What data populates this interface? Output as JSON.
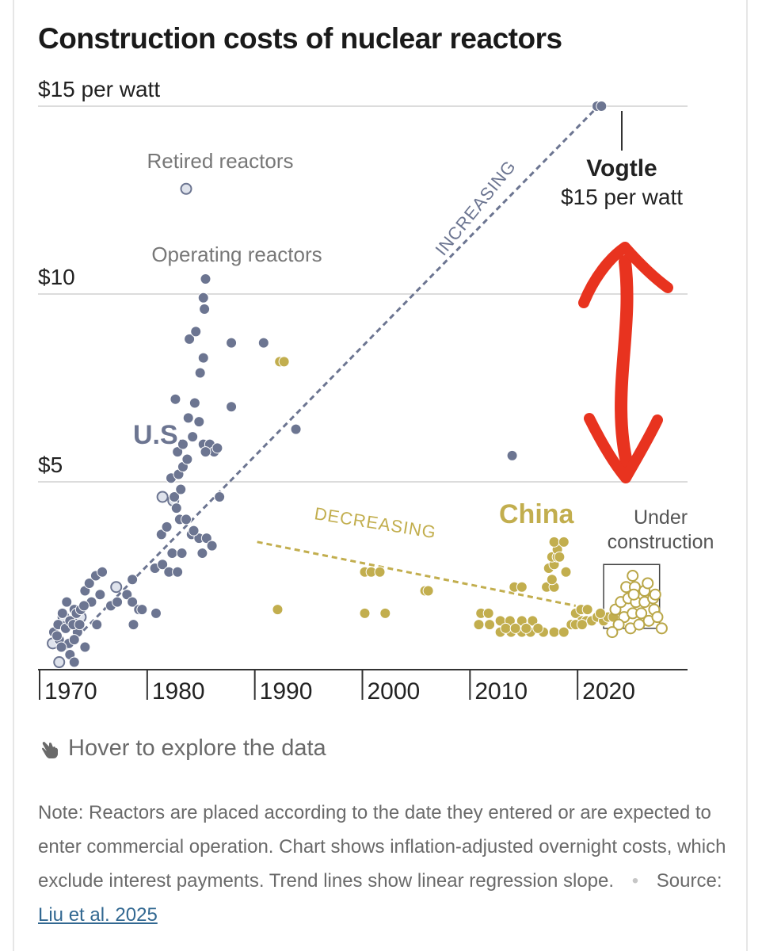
{
  "title": "Construction costs of nuclear reactors",
  "hover_text": "Hover to explore the data",
  "note": {
    "text": "Note: Reactors are placed according to the date they entered or are expected to enter commercial operation. Chart shows inflation-adjusted overnight costs, which exclude interest payments. Trend lines show linear regression slope.",
    "source_label": "Source:",
    "source_link": "Liu et al. 2025"
  },
  "colors": {
    "us": "#6c7591",
    "china": "#c2ae4e",
    "china_outline": "#b9a647",
    "arrow": "#e8331f",
    "grid": "#dcdcdc"
  },
  "chart_data": {
    "type": "scatter",
    "title": "Construction costs of nuclear reactors",
    "ylim": [
      0,
      15
    ],
    "xlim": [
      1970,
      2030
    ],
    "ytick_labels": [
      "$15 per watt",
      "$10",
      "$5"
    ],
    "yticks": [
      15,
      10,
      5
    ],
    "xticks": [
      1970,
      1980,
      1990,
      2000,
      2010,
      2020
    ],
    "xtick_labels": [
      "1970",
      "1980",
      "1990",
      "2000",
      "2010",
      "2020"
    ],
    "annotations": {
      "us_label": "U.S.",
      "china_label": "China",
      "retired": "Retired reactors",
      "operating": "Operating reactors",
      "vogtle_name": "Vogtle",
      "vogtle_value": "$15 per watt",
      "increasing": "INCREASING",
      "decreasing": "DECREASING",
      "under_construction_1": "Under",
      "under_construction_2": "construction"
    },
    "us_operating": [
      [
        1971.1,
        1.0
      ],
      [
        1971.5,
        1.2
      ],
      [
        1971.9,
        1.5
      ],
      [
        1972.2,
        1.1
      ],
      [
        1972.6,
        1.3
      ],
      [
        1973.0,
        1.6
      ],
      [
        1973.3,
        1.0
      ],
      [
        1971.6,
        0.8
      ],
      [
        1972.5,
        0.7
      ],
      [
        1973.0,
        0.8
      ],
      [
        1971.8,
        0.6
      ],
      [
        1972.6,
        0.4
      ],
      [
        1973.0,
        0.2
      ],
      [
        1971.4,
        0.9
      ],
      [
        1972.9,
        1.2
      ],
      [
        1973.2,
        1.5
      ],
      [
        1972.3,
        1.8
      ],
      [
        1973.6,
        1.6
      ],
      [
        1974.0,
        2.1
      ],
      [
        1974.4,
        2.3
      ],
      [
        1975.0,
        2.5
      ],
      [
        1975.6,
        2.6
      ],
      [
        1973.5,
        1.2
      ],
      [
        1974.0,
        0.6
      ],
      [
        1974.6,
        1.8
      ],
      [
        1975.4,
        2.0
      ],
      [
        1975.1,
        1.2
      ],
      [
        1973.9,
        1.7
      ],
      [
        1976.4,
        1.7
      ],
      [
        1977.0,
        1.8
      ],
      [
        1977.9,
        2.0
      ],
      [
        1978.4,
        2.4
      ],
      [
        1978.4,
        1.8
      ],
      [
        1979.0,
        1.6
      ],
      [
        1978.5,
        1.2
      ],
      [
        1979.3,
        1.6
      ],
      [
        1980.6,
        1.5
      ],
      [
        1980.5,
        2.7
      ],
      [
        1981.2,
        2.8
      ],
      [
        1981.8,
        2.6
      ],
      [
        1982.6,
        2.6
      ],
      [
        1981.1,
        3.6
      ],
      [
        1981.6,
        3.8
      ],
      [
        1982.8,
        4.0
      ],
      [
        1983.4,
        4.0
      ],
      [
        1983.9,
        3.6
      ],
      [
        1984.6,
        3.5
      ],
      [
        1984.9,
        3.1
      ],
      [
        1985.3,
        3.5
      ],
      [
        1982.1,
        3.1
      ],
      [
        1983.0,
        3.1
      ],
      [
        1984.1,
        3.7
      ],
      [
        1985.8,
        3.3
      ],
      [
        1982.5,
        4.3
      ],
      [
        1982.0,
        5.1
      ],
      [
        1982.3,
        4.6
      ],
      [
        1982.7,
        5.2
      ],
      [
        1982.9,
        4.8
      ],
      [
        1983.1,
        5.4
      ],
      [
        1982.6,
        5.8
      ],
      [
        1983.1,
        6.0
      ],
      [
        1983.5,
        5.6
      ],
      [
        1984.0,
        6.2
      ],
      [
        1983.6,
        6.7
      ],
      [
        1984.6,
        6.6
      ],
      [
        1984.2,
        7.1
      ],
      [
        1985.0,
        6.0
      ],
      [
        1985.6,
        6.0
      ],
      [
        1986.0,
        5.8
      ],
      [
        1986.3,
        5.9
      ],
      [
        1986.5,
        4.6
      ],
      [
        1985.2,
        5.8
      ],
      [
        1982.4,
        7.2
      ],
      [
        1984.7,
        7.9
      ],
      [
        1985.0,
        8.3
      ],
      [
        1983.7,
        8.8
      ],
      [
        1984.3,
        9.0
      ],
      [
        1985.1,
        9.6
      ],
      [
        1985.0,
        9.9
      ],
      [
        1985.2,
        10.4
      ],
      [
        1987.6,
        8.7
      ],
      [
        1987.6,
        7.0
      ],
      [
        1990.6,
        8.7
      ],
      [
        1993.6,
        6.4
      ],
      [
        2013.7,
        5.7
      ],
      [
        2021.6,
        15.0
      ],
      [
        2022.0,
        15.0
      ]
    ],
    "us_retired": [
      [
        1971.0,
        0.7
      ],
      [
        1971.6,
        0.2
      ],
      [
        1972.0,
        1.4
      ],
      [
        1973.6,
        1.4
      ],
      [
        1976.9,
        2.2
      ],
      [
        1981.2,
        4.6
      ],
      [
        1982.2,
        4.5
      ],
      [
        1983.4,
        12.8
      ]
    ],
    "china_operating": [
      [
        1992.1,
        8.2
      ],
      [
        1992.5,
        8.2
      ],
      [
        1991.9,
        1.6
      ],
      [
        2000.0,
        2.6
      ],
      [
        2000.6,
        2.6
      ],
      [
        2001.4,
        2.6
      ],
      [
        2000.0,
        1.5
      ],
      [
        2001.9,
        1.5
      ],
      [
        2005.6,
        2.1
      ],
      [
        2005.9,
        2.1
      ],
      [
        2010.8,
        1.5
      ],
      [
        2011.5,
        1.5
      ],
      [
        2010.6,
        1.2
      ],
      [
        2011.6,
        1.2
      ],
      [
        2012.6,
        1.3
      ],
      [
        2013.5,
        1.3
      ],
      [
        2014.6,
        1.3
      ],
      [
        2015.6,
        1.3
      ],
      [
        2012.6,
        1.0
      ],
      [
        2013.6,
        1.0
      ],
      [
        2014.6,
        1.0
      ],
      [
        2015.4,
        1.0
      ],
      [
        2016.6,
        1.0
      ],
      [
        2017.6,
        1.0
      ],
      [
        2018.5,
        1.0
      ],
      [
        2013.1,
        1.1
      ],
      [
        2014.0,
        1.1
      ],
      [
        2015.0,
        1.1
      ],
      [
        2016.1,
        1.1
      ],
      [
        2013.9,
        2.2
      ],
      [
        2014.6,
        2.2
      ],
      [
        2016.9,
        2.2
      ],
      [
        2017.6,
        2.2
      ],
      [
        2017.4,
        2.4
      ],
      [
        2017.1,
        2.7
      ],
      [
        2017.6,
        2.8
      ],
      [
        2017.4,
        3.0
      ],
      [
        2017.9,
        3.0
      ],
      [
        2017.9,
        3.2
      ],
      [
        2017.6,
        3.4
      ],
      [
        2018.5,
        3.4
      ],
      [
        2018.1,
        3.0
      ],
      [
        2018.7,
        2.6
      ],
      [
        2019.6,
        1.5
      ],
      [
        2020.2,
        1.3
      ],
      [
        2020.6,
        1.3
      ],
      [
        2021.1,
        1.3
      ],
      [
        2021.6,
        1.4
      ],
      [
        2022.2,
        1.3
      ],
      [
        2022.6,
        1.4
      ],
      [
        2023.1,
        1.4
      ],
      [
        2019.2,
        1.2
      ],
      [
        2019.6,
        1.2
      ],
      [
        2020.2,
        1.2
      ],
      [
        2021.9,
        1.5
      ],
      [
        2020.1,
        1.6
      ],
      [
        2020.7,
        1.6
      ]
    ],
    "china_under_construction": [
      [
        2023.3,
        1.6
      ],
      [
        2023.8,
        1.8
      ],
      [
        2024.1,
        1.4
      ],
      [
        2024.5,
        1.9
      ],
      [
        2024.9,
        1.5
      ],
      [
        2025.2,
        1.8
      ],
      [
        2025.7,
        1.5
      ],
      [
        2026.0,
        1.8
      ],
      [
        2026.4,
        1.3
      ],
      [
        2026.9,
        1.6
      ],
      [
        2027.2,
        1.4
      ],
      [
        2027.6,
        1.1
      ],
      [
        2024.3,
        2.2
      ],
      [
        2025.1,
        2.2
      ],
      [
        2026.0,
        2.1
      ],
      [
        2026.8,
        1.9
      ],
      [
        2023.6,
        1.2
      ],
      [
        2024.7,
        1.1
      ],
      [
        2025.5,
        1.2
      ],
      [
        2023.0,
        1.0
      ],
      [
        2025.0,
        2.0
      ],
      [
        2026.3,
        2.3
      ],
      [
        2024.9,
        2.5
      ],
      [
        2027.0,
        2.0
      ]
    ],
    "trend_us": {
      "x": [
        1972,
        2021.7
      ],
      "y": [
        0.5,
        15.0
      ]
    },
    "trend_china": {
      "x": [
        1990,
        2019.6
      ],
      "y": [
        3.4,
        1.7
      ]
    },
    "under_construction_box": {
      "x": [
        2022.2,
        2027.4
      ],
      "y": [
        1.1,
        2.8
      ]
    }
  }
}
